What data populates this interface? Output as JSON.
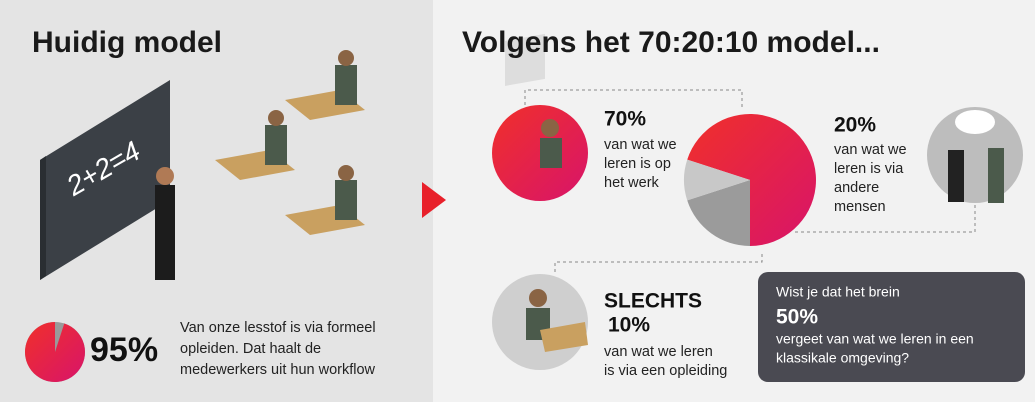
{
  "left": {
    "title": "Huidig model",
    "pie": {
      "values": [
        95
      ],
      "value_labels": [
        "95%"
      ]
    },
    "text": [
      "Van onze lesstof is via formeel",
      "opleiden. Dat haalt de",
      "medewerkers uit hun workflow"
    ]
  },
  "right": {
    "title": "Volgens het 70:20:10 model...",
    "pie": {
      "values": [
        70,
        20,
        10
      ],
      "value_labels": [
        "70%",
        "20%",
        "10%"
      ]
    },
    "item_70": [
      "van wat we",
      "leren is op",
      "het werk"
    ],
    "item_20": [
      "van wat we",
      "leren is via",
      "andere",
      "mensen"
    ],
    "item_10_prefix": "SLECHTS",
    "item_10": [
      "van wat we leren",
      "is via een opleiding"
    ],
    "box": {
      "intro": "Wist je dat het brein",
      "value_label": "50%",
      "text": [
        "vergeet van wat we leren in een",
        "klassikale omgeving?"
      ]
    }
  }
}
